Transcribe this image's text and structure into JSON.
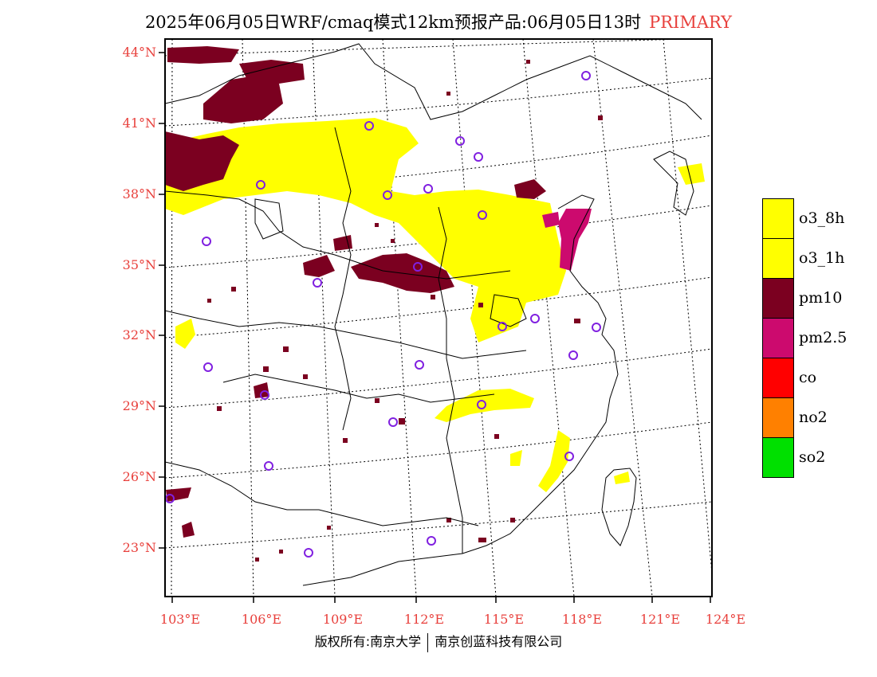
{
  "title": {
    "text": "2025年06月05日WRF/cmaq模式12km预报产品:06月05日13时",
    "tag": "PRIMARY"
  },
  "map": {
    "extent": {
      "lon": [
        102.8,
        124.0
      ],
      "lat": [
        21.2,
        44.5
      ]
    },
    "lat_labels": [
      "44°N",
      "41°N",
      "38°N",
      "35°N",
      "32°N",
      "29°N",
      "26°N",
      "23°N"
    ],
    "lon_labels": [
      "103°E",
      "106°E",
      "109°E",
      "112°E",
      "115°E",
      "118°E",
      "121°E",
      "124°E"
    ],
    "colors": {
      "o3_8h": "#ffff00",
      "o3_1h": "#ffff00",
      "pm10": "#7b0020",
      "pm2_5": "#cc0a6e",
      "co": "#ff0000",
      "no2": "#ff8000",
      "so2": "#00e000",
      "station": "#8020e0",
      "label": "#e8403c"
    }
  },
  "legend": [
    {
      "label": "o3_8h",
      "color": "#ffff00"
    },
    {
      "label": "o3_1h",
      "color": "#ffff00"
    },
    {
      "label": "pm10",
      "color": "#7b0020"
    },
    {
      "label": "pm2.5",
      "color": "#cc0a6e"
    },
    {
      "label": "co",
      "color": "#ff0000"
    },
    {
      "label": "no2",
      "color": "#ff8000"
    },
    {
      "label": "so2",
      "color": "#00e000"
    }
  ],
  "footer": {
    "left": "版权所有:南京大学",
    "right": "南京创蓝科技有限公司"
  }
}
